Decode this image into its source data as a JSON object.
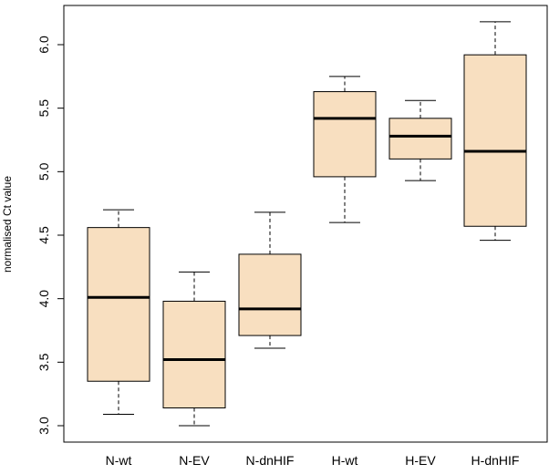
{
  "chart_data": {
    "type": "box",
    "title": "",
    "xlabel": "",
    "ylabel": "normalised Ct value",
    "ylim": [
      2.96,
      6.3
    ],
    "yticks": [
      "3.0",
      "3.5",
      "4.0",
      "4.5",
      "5.0",
      "5.5",
      "6.0"
    ],
    "categories": [
      "N-wt",
      "N-EV",
      "N-dnHIF",
      "H-wt",
      "H-EV",
      "H-dnHIF"
    ],
    "boxes": [
      {
        "min": 3.09,
        "q1": 3.35,
        "median": 4.01,
        "q3": 4.56,
        "max": 4.7
      },
      {
        "min": 3.0,
        "q1": 3.14,
        "median": 3.52,
        "q3": 3.98,
        "max": 4.21
      },
      {
        "min": 3.61,
        "q1": 3.71,
        "median": 3.92,
        "q3": 4.35,
        "max": 4.68
      },
      {
        "min": 4.6,
        "q1": 4.96,
        "median": 5.42,
        "q3": 5.63,
        "max": 5.75
      },
      {
        "min": 4.93,
        "q1": 5.1,
        "median": 5.28,
        "q3": 5.42,
        "max": 5.56
      },
      {
        "min": 4.46,
        "q1": 4.57,
        "median": 5.16,
        "q3": 5.92,
        "max": 6.18
      }
    ],
    "box_fill": "#f8dfc0",
    "line_color": "#000000",
    "grid": false
  }
}
